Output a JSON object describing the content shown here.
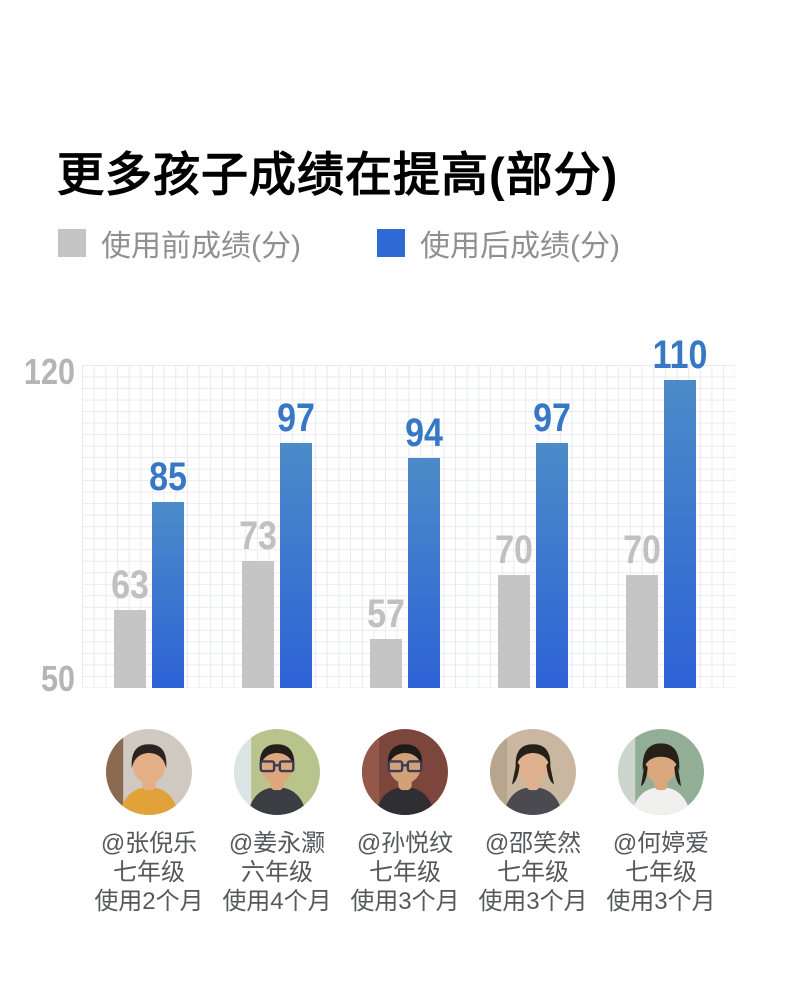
{
  "title": "更多孩子成绩在提高(部分)",
  "legend": {
    "before_label": "使用前成绩(分)",
    "after_label": "使用后成绩(分)"
  },
  "axis": {
    "top_tick": "120",
    "bottom_tick": "50"
  },
  "chart_data": {
    "type": "bar",
    "title": "更多孩子成绩在提高(部分)",
    "categories": [
      "@张倪乐",
      "@姜永灏",
      "@孙悦纹",
      "@邵笑然",
      "@何婷爱"
    ],
    "series": [
      {
        "name": "使用前成绩(分)",
        "values": [
          63,
          73,
          57,
          70,
          70
        ],
        "color": "#c5c5c5"
      },
      {
        "name": "使用后成绩(分)",
        "values": [
          85,
          97,
          94,
          97,
          110
        ],
        "color_top": "#4c8bc8",
        "color_bottom": "#2e62d6"
      }
    ],
    "xlabel": "",
    "ylabel": "",
    "ylim": [
      50,
      120
    ],
    "yticks": [
      120,
      50
    ],
    "grid": true,
    "legend_position": "top"
  },
  "students": [
    {
      "handle": "@张倪乐",
      "grade": "七年级",
      "duration": "使用2个月",
      "avatar": {
        "name": "boy-photo",
        "bg": "#cfc9c1",
        "bg2": "#8a6b52",
        "shirt": "#e2a23a",
        "skin": "#e4af86",
        "hair": "#2a2420",
        "glasses": false,
        "style": "boy"
      }
    },
    {
      "handle": "@姜永灏",
      "grade": "六年级",
      "duration": "使用4个月",
      "avatar": {
        "name": "boy-glasses-photo",
        "bg": "#b9c48c",
        "bg2": "#dde4e6",
        "shirt": "#3a3d42",
        "skin": "#dca87c",
        "hair": "#241f1b",
        "glasses": true,
        "style": "boy"
      }
    },
    {
      "handle": "@孙悦纹",
      "grade": "七年级",
      "duration": "使用3个月",
      "avatar": {
        "name": "boy-glasses-photo",
        "bg": "#7c463c",
        "bg2": "#93584a",
        "shirt": "#2e2e33",
        "skin": "#d3a178",
        "hair": "#1f1b18",
        "glasses": true,
        "style": "boy"
      }
    },
    {
      "handle": "@邵笑然",
      "grade": "七年级",
      "duration": "使用3个月",
      "avatar": {
        "name": "girl-photo",
        "bg": "#c9b7a2",
        "bg2": "#b7a58e",
        "shirt": "#4a4a50",
        "skin": "#e0b18f",
        "hair": "#262019",
        "glasses": false,
        "style": "girl"
      }
    },
    {
      "handle": "@何婷爱",
      "grade": "七年级",
      "duration": "使用3个月",
      "avatar": {
        "name": "girl-bangs-photo",
        "bg": "#93ae97",
        "bg2": "#cdd6cd",
        "shirt": "#f0f0ee",
        "skin": "#d9a87e",
        "hair": "#262019",
        "glasses": false,
        "style": "girl-bangs"
      }
    }
  ],
  "colors": {
    "background": "#ffffff",
    "title": "#000000",
    "legend_text": "#909090",
    "legend_before_swatch": "#c5c5c6",
    "legend_after_swatch": "#2f6bd5",
    "bar_before": "#c5c5c5",
    "bar_after_top": "#4c8bc8",
    "bar_after_bottom": "#2e62d6",
    "value_label_before": "#c0c0c0",
    "value_label_after": "#3778c5",
    "axis_tick": "#b5b5b5",
    "grid_line": "#e8eaf0",
    "student_text": "#57585a"
  }
}
